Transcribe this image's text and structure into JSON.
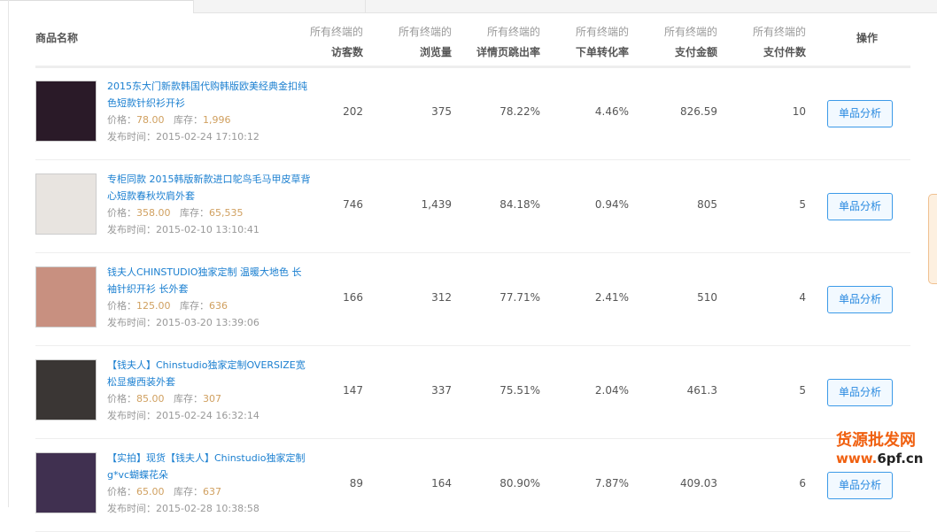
{
  "header": {
    "name": "商品名称",
    "prefix": "所有终端的",
    "columns": [
      "访客数",
      "浏览量",
      "详情页跳出率",
      "下单转化率",
      "支付金额",
      "支付件数"
    ],
    "action": "操作"
  },
  "labels": {
    "price": "价格：",
    "stock": "库存：",
    "published": "发布时间："
  },
  "rows": [
    {
      "title": "2015东大门新款韩国代购韩版欧美经典金扣纯色短款针织衫开衫",
      "price": "78.00",
      "stock": "1,996",
      "published": "2015-02-24 17:10:12",
      "values": [
        "202",
        "375",
        "78.22%",
        "4.46%",
        "826.59",
        "10"
      ],
      "button": "单品分析",
      "thumb": "#2a1a28"
    },
    {
      "title": "专柜同款 2015韩版新款进口鸵鸟毛马甲皮草背心短款春秋坎肩外套",
      "price": "358.00",
      "stock": "65,535",
      "published": "2015-02-10 13:10:41",
      "values": [
        "746",
        "1,439",
        "84.18%",
        "0.94%",
        "805",
        "5"
      ],
      "button": "单品分析",
      "thumb": "#e8e4e0"
    },
    {
      "title": "钱夫人CHINSTUDIO独家定制 温暖大地色 长袖针织开衫 长外套",
      "price": "125.00",
      "stock": "636",
      "published": "2015-03-20 13:39:06",
      "values": [
        "166",
        "312",
        "77.71%",
        "2.41%",
        "510",
        "4"
      ],
      "button": "单品分析",
      "thumb": "#c89080"
    },
    {
      "title": "【钱夫人】Chinstudio独家定制OVERSIZE宽松显瘦西装外套",
      "price": "85.00",
      "stock": "307",
      "published": "2015-02-24 16:32:14",
      "values": [
        "147",
        "337",
        "75.51%",
        "2.04%",
        "461.3",
        "5"
      ],
      "button": "单品分析",
      "thumb": "#3a3634"
    },
    {
      "title": "【实拍】现货【钱夫人】Chinstudio独家定制 g*vc蝴蝶花朵",
      "price": "65.00",
      "stock": "637",
      "published": "2015-02-28 10:38:58",
      "values": [
        "89",
        "164",
        "80.90%",
        "7.87%",
        "409.03",
        "6"
      ],
      "button": "单品分析",
      "thumb": "#403050"
    }
  ],
  "watermark": {
    "line1": "货源批发网",
    "line2a": "www.",
    "line2b": "6pf.cn"
  }
}
